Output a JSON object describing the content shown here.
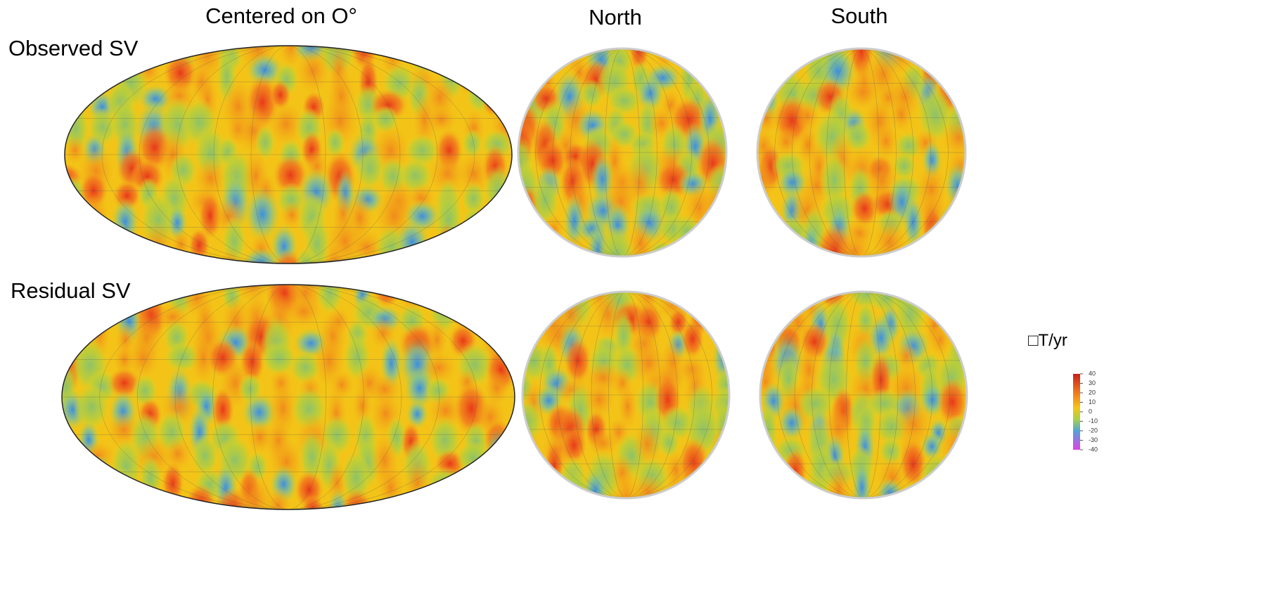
{
  "header": {
    "columns": [
      "Centered on O°",
      "North",
      "South"
    ],
    "rows": [
      "Observed SV",
      "Residual SV"
    ]
  },
  "colorbar": {
    "label": "□T/yr",
    "range": [
      -40,
      40
    ],
    "ticks": [
      40,
      30,
      20,
      10,
      0,
      -10,
      -20,
      -30,
      -40
    ]
  }
}
